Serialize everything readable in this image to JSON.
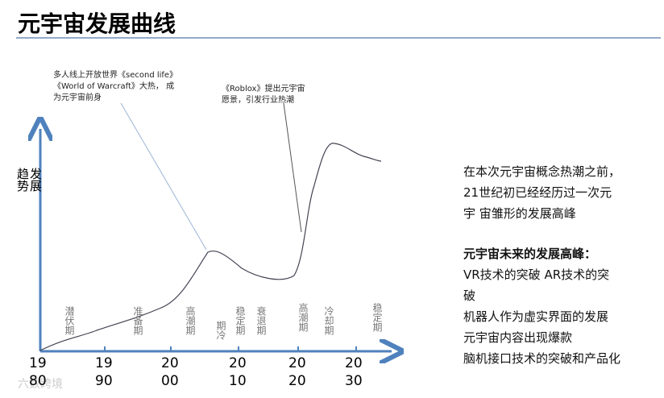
{
  "title": "元宇宙发展曲线",
  "y_axis_label": "发展趋势",
  "x_tick_labels": [
    "1980",
    "1990",
    "2000",
    "2010",
    "2020",
    "2030"
  ],
  "phase_labels": [
    "潜伏期",
    "准备期",
    "高潮期",
    "期冷",
    "稳定期",
    "衰退期",
    "高潮期",
    "冷却期",
    "稳定期"
  ],
  "annotations": [
    {
      "lines": [
        "多人线上开放世界《second life》",
        "《World of Warcraft》大热， 成",
        "为元宇宙前身"
      ]
    },
    {
      "lines": [
        "《Roblox》提出元宇宙",
        "愿景，引发行业热潮"
      ]
    }
  ],
  "side_text": {
    "intro": [
      "在本次元宇宙概念热潮之前，",
      "21世纪初已经经历过一次元",
      "宇 宙雏形的发展高峰"
    ],
    "heading": "元宇宙未来的发展高峰：",
    "items": [
      "VR技术的突破  AR技术的突",
      "破",
      "机器人作为虚实界面的发展",
      "元宇宙内容出现爆款",
      "脑机接口技术的突破和产品化"
    ]
  },
  "watermark": "六数跨境"
}
